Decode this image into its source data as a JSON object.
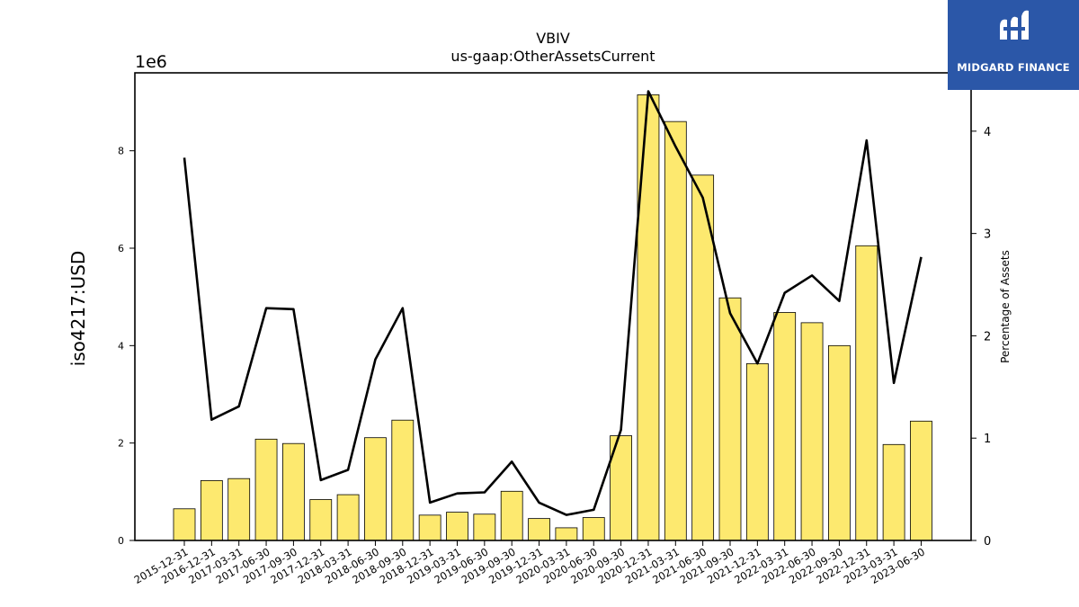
{
  "logo": {
    "text": "MIDGARD FINANCE",
    "background": "#2b57a8"
  },
  "chart_data": {
    "type": "bar",
    "title": "VBIV",
    "subtitle": "us-gaap:OtherAssetsCurrent",
    "ylabel": "iso4217:USD",
    "y2label": "Percentage of Assets",
    "y_multiplier_label": "1e6",
    "ylim": [
      0,
      9.6
    ],
    "yticks": [
      0,
      2,
      4,
      6,
      8
    ],
    "y2lim": [
      0,
      4.57
    ],
    "y2ticks": [
      0,
      1,
      2,
      3,
      4
    ],
    "bar_color": "#fde96f",
    "line_color": "#000000",
    "categories": [
      "2015-12-31",
      "2016-12-31",
      "2017-03-31",
      "2017-06-30",
      "2017-09-30",
      "2017-12-31",
      "2018-03-31",
      "2018-06-30",
      "2018-09-30",
      "2018-12-31",
      "2019-03-31",
      "2019-06-30",
      "2019-09-30",
      "2019-12-31",
      "2020-03-31",
      "2020-06-30",
      "2020-09-30",
      "2020-12-31",
      "2021-03-31",
      "2021-06-30",
      "2021-09-30",
      "2021-12-31",
      "2022-03-31",
      "2022-06-30",
      "2022-09-30",
      "2022-12-31",
      "2023-03-31",
      "2023-06-30"
    ],
    "series": [
      {
        "name": "",
        "kind": "bar",
        "axis": "left",
        "values": [
          0.65,
          1.23,
          1.27,
          2.08,
          1.99,
          0.84,
          0.94,
          2.11,
          2.47,
          0.52,
          0.58,
          0.54,
          1.01,
          0.45,
          0.26,
          0.47,
          2.15,
          9.15,
          8.6,
          7.5,
          4.98,
          3.63,
          4.68,
          4.47,
          4.0,
          6.05,
          1.97,
          2.45
        ]
      },
      {
        "name": "",
        "kind": "line",
        "axis": "right",
        "values": [
          3.74,
          1.18,
          1.31,
          2.27,
          2.26,
          0.59,
          0.69,
          1.77,
          2.27,
          0.37,
          0.46,
          0.47,
          0.77,
          0.37,
          0.25,
          0.3,
          1.08,
          4.39,
          3.85,
          3.35,
          2.22,
          1.73,
          2.42,
          2.59,
          2.34,
          3.91,
          1.54,
          2.77
        ]
      }
    ]
  }
}
